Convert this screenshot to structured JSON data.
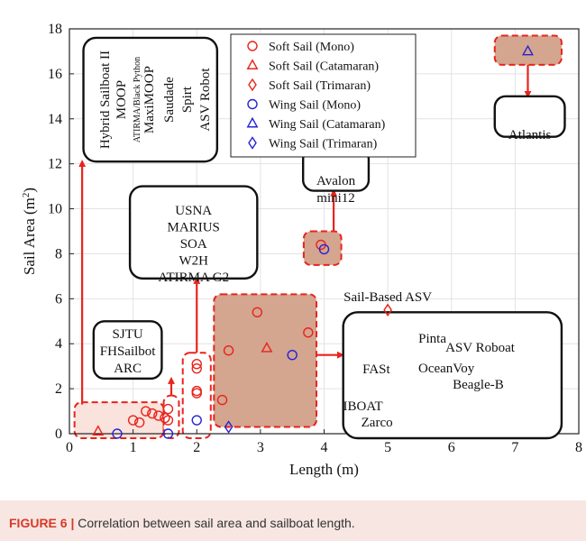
{
  "caption": {
    "label": "FIGURE 6 |",
    "text": " Correlation between sail area and sailboat length."
  },
  "chart_data": {
    "type": "scatter",
    "xlabel": "Length (m)",
    "ylabel": "Sail Area (m²)",
    "ylabel_base": "Sail Area (m",
    "ylabel_sup": "2",
    "ylabel_close": ")",
    "xlim": [
      0,
      8
    ],
    "ylim": [
      0,
      18
    ],
    "xticks": [
      "0",
      "1",
      "2",
      "3",
      "4",
      "5",
      "6",
      "7",
      "8"
    ],
    "yticks": [
      "0",
      "2",
      "4",
      "6",
      "8",
      "10",
      "12",
      "14",
      "16",
      "18"
    ],
    "grid": true,
    "legend_position": "top-center",
    "colors": {
      "soft": "#e8241c",
      "wing": "#2424d6",
      "highlight_fill": "#d4a58f",
      "highlight_border": "#e8241c",
      "arrow": "#e8241c"
    },
    "series": [
      {
        "name": "Soft Sail (Mono)",
        "marker": "circle",
        "color": "#e8241c",
        "points": [
          [
            1.0,
            0.6
          ],
          [
            1.1,
            0.5
          ],
          [
            1.2,
            1.0
          ],
          [
            1.3,
            0.9
          ],
          [
            1.4,
            0.8
          ],
          [
            1.5,
            0.7
          ],
          [
            1.55,
            1.1
          ],
          [
            1.55,
            0.6
          ],
          [
            2.0,
            3.1
          ],
          [
            2.0,
            2.9
          ],
          [
            2.0,
            1.9
          ],
          [
            2.0,
            1.8
          ],
          [
            2.4,
            1.5
          ],
          [
            2.5,
            3.7
          ],
          [
            2.95,
            5.4
          ],
          [
            3.75,
            4.5
          ],
          [
            3.95,
            8.4
          ]
        ]
      },
      {
        "name": "Soft Sail (Catamaran)",
        "marker": "triangle",
        "color": "#e8241c",
        "points": [
          [
            0.45,
            0.1
          ],
          [
            3.1,
            3.8
          ]
        ]
      },
      {
        "name": "Soft Sail (Trimaran)",
        "marker": "diamond",
        "color": "#e8241c",
        "points": [
          [
            5.0,
            5.5
          ]
        ]
      },
      {
        "name": "Wing Sail (Mono)",
        "marker": "circle",
        "color": "#2424d6",
        "points": [
          [
            0.75,
            0.0
          ],
          [
            1.55,
            0.0
          ],
          [
            2.0,
            0.6
          ],
          [
            3.5,
            3.5
          ],
          [
            4.0,
            8.2
          ]
        ]
      },
      {
        "name": "Wing Sail (Catamaran)",
        "marker": "triangle",
        "color": "#2424d6",
        "points": [
          [
            7.2,
            17.0
          ]
        ]
      },
      {
        "name": "Wing Sail (Trimaran)",
        "marker": "diamond",
        "color": "#2424d6",
        "points": [
          [
            2.5,
            0.3
          ]
        ]
      }
    ],
    "annotations": [
      {
        "id": "box-hybrid",
        "lines": [
          "Hybrid Sailboat II",
          "MOOP",
          "ATIRMA/Black Python",
          "MaxiMOOP",
          "Saudade",
          "Spirt",
          "ASV Robot"
        ]
      },
      {
        "id": "box-usna",
        "lines": [
          "USNA",
          "MARIUS",
          "SOA",
          "W2H",
          "ATIRMA G2"
        ]
      },
      {
        "id": "box-sjtu",
        "lines": [
          "SJTU",
          "FHSailbot",
          "ARC"
        ]
      },
      {
        "id": "box-avalon",
        "lines": [
          "Avalon",
          "mini12"
        ]
      },
      {
        "id": "box-atlantis",
        "lines": [
          "Atlantis"
        ]
      },
      {
        "id": "label-sail-based",
        "lines": [
          "Sail-Based ASV"
        ]
      },
      {
        "id": "box-big",
        "lines": [
          "Pinta",
          "ASV Roboat",
          "FASt",
          "OceanVoy",
          "Beagle-B",
          "IBOAT",
          "Zarco"
        ]
      }
    ]
  }
}
